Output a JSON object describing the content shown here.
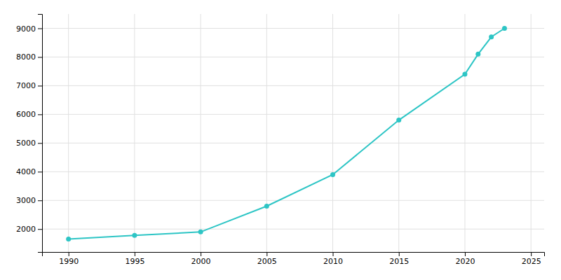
{
  "chart_data": {
    "type": "line",
    "x": [
      1990,
      1995,
      2000,
      2005,
      2010,
      2015,
      2020,
      2021,
      2022,
      2023
    ],
    "values": [
      1650,
      1780,
      1900,
      2800,
      3900,
      5800,
      7400,
      8100,
      8700,
      9000
    ],
    "color": "#2DC5C5",
    "marker": "circle",
    "xlim": [
      1988,
      2026
    ],
    "ylim": [
      1200,
      9500
    ],
    "xticks": [
      1990,
      1995,
      2000,
      2005,
      2010,
      2015,
      2020,
      2025
    ],
    "yticks": [
      2000,
      3000,
      4000,
      5000,
      6000,
      7000,
      8000,
      9000
    ],
    "grid": true
  }
}
